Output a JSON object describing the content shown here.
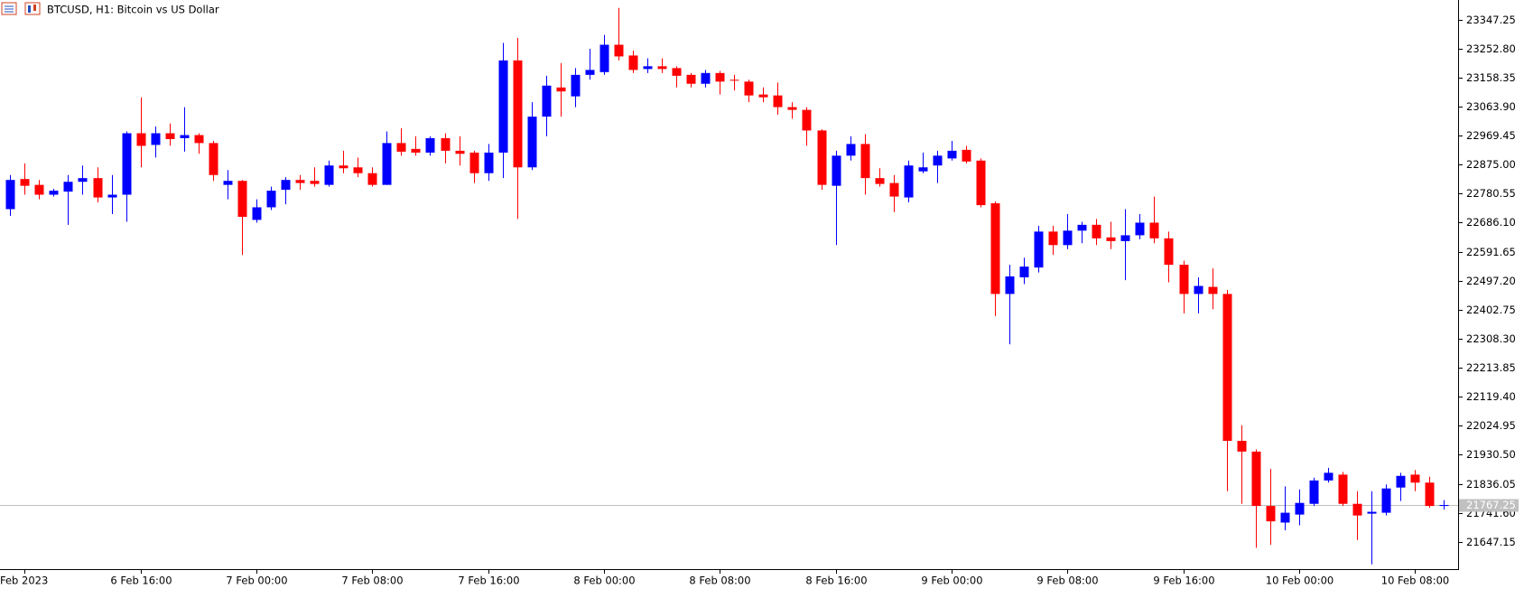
{
  "chart_data": {
    "type": "candlestick",
    "title": "BTCUSD, H1:  Bitcoin vs US Dollar",
    "bull_color": "#0000ff",
    "bear_color": "#ff0000",
    "categories": [
      null,
      "Feb 2023",
      null,
      null,
      null,
      null,
      null,
      null,
      null,
      "6 Feb 16:00",
      null,
      null,
      null,
      null,
      null,
      null,
      null,
      "7 Feb 00:00",
      null,
      null,
      null,
      null,
      null,
      null,
      null,
      "7 Feb 08:00",
      null,
      null,
      null,
      null,
      null,
      null,
      null,
      "7 Feb 16:00",
      null,
      null,
      null,
      null,
      null,
      null,
      null,
      "8 Feb 00:00",
      null,
      null,
      null,
      null,
      null,
      null,
      null,
      "8 Feb 08:00",
      null,
      null,
      null,
      null,
      null,
      null,
      null,
      "8 Feb 16:00",
      null,
      null,
      null,
      null,
      null,
      null,
      null,
      "9 Feb 00:00",
      null,
      null,
      null,
      null,
      null,
      null,
      null,
      "9 Feb 08:00",
      null,
      null,
      null,
      null,
      null,
      null,
      null,
      "9 Feb 16:00",
      null,
      null,
      null,
      null,
      null,
      null,
      null,
      "10 Feb 00:00",
      null,
      null,
      null,
      null,
      null,
      null,
      null,
      "10 Feb 08:00",
      null,
      null
    ],
    "open": [
      22730,
      22828,
      22809,
      22777,
      22787,
      22819,
      22831,
      22768,
      22777,
      22977,
      22939,
      22977,
      22961,
      22971,
      22945,
      22809,
      22822,
      22695,
      22736,
      22793,
      22825,
      22822,
      22809,
      22872,
      22866,
      22847,
      22809,
      22945,
      22926,
      22914,
      22961,
      22920,
      22914,
      22847,
      22914,
      23214,
      22866,
      23031,
      23126,
      23097,
      23167,
      23176,
      23265,
      23230,
      23186,
      23195,
      23189,
      23167,
      23138,
      23173,
      23151,
      23145,
      23103,
      23100,
      23062,
      23053,
      22986,
      22806,
      22904,
      22942,
      22831,
      22815,
      22768,
      22853,
      22872,
      22895,
      22923,
      22888,
      22749,
      22454,
      22508,
      22540,
      22657,
      22613,
      22660,
      22679,
      22638,
      22626,
      22645,
      22686,
      22635,
      22549,
      22454,
      22477,
      22454,
      21976,
      21941,
      21764,
      21710,
      21736,
      21771,
      21847,
      21866,
      21771,
      21739,
      21742,
      21824,
      21866,
      21840,
      21764
    ],
    "high": [
      22841,
      22879,
      22825,
      22796,
      22841,
      22872,
      22866,
      22841,
      22983,
      23094,
      22999,
      23009,
      23062,
      22977,
      22952,
      22857,
      22825,
      22762,
      22803,
      22834,
      22841,
      22866,
      22888,
      22920,
      22898,
      22866,
      22983,
      22993,
      22967,
      22967,
      22977,
      22967,
      22920,
      22942,
      23271,
      23287,
      23078,
      23164,
      23205,
      23189,
      23252,
      23297,
      23385,
      23246,
      23221,
      23221,
      23195,
      23173,
      23183,
      23180,
      23167,
      23151,
      23126,
      23142,
      23078,
      23062,
      22990,
      22920,
      22967,
      22974,
      22863,
      22841,
      22888,
      22914,
      22920,
      22952,
      22936,
      22895,
      22755,
      22549,
      22572,
      22676,
      22676,
      22714,
      22689,
      22698,
      22689,
      22730,
      22714,
      22771,
      22657,
      22562,
      22508,
      22537,
      22467,
      22027,
      21948,
      21885,
      21828,
      21818,
      21856,
      21888,
      21875,
      21812,
      21812,
      21834,
      21872,
      21881,
      21859,
      21783
    ],
    "low": [
      22708,
      22777,
      22762,
      22771,
      22679,
      22777,
      22752,
      22714,
      22689,
      22866,
      22898,
      22936,
      22917,
      22910,
      22822,
      22762,
      22581,
      22686,
      22727,
      22746,
      22793,
      22803,
      22803,
      22847,
      22834,
      22803,
      22809,
      22904,
      22904,
      22904,
      22879,
      22872,
      22815,
      22822,
      22831,
      22698,
      22857,
      22967,
      23031,
      23062,
      23151,
      23167,
      23214,
      23173,
      23173,
      23173,
      23126,
      23126,
      23126,
      23103,
      23116,
      23078,
      23078,
      23037,
      23024,
      22936,
      22793,
      22613,
      22888,
      22777,
      22803,
      22720,
      22752,
      22847,
      22815,
      22888,
      22879,
      22736,
      22382,
      22290,
      22486,
      22524,
      22581,
      22600,
      22619,
      22613,
      22600,
      22499,
      22632,
      22619,
      22492,
      22391,
      22391,
      22404,
      21812,
      21771,
      21628,
      21638,
      21685,
      21701,
      21764,
      21840,
      21764,
      21653,
      21574,
      21733,
      21780,
      21812,
      21758,
      21752
    ],
    "close": [
      22825,
      22806,
      22777,
      22790,
      22819,
      22831,
      22768,
      22777,
      22977,
      22936,
      22977,
      22958,
      22971,
      22945,
      22841,
      22822,
      22705,
      22736,
      22790,
      22825,
      22815,
      22812,
      22872,
      22863,
      22847,
      22809,
      22945,
      22917,
      22914,
      22961,
      22920,
      22910,
      22847,
      22914,
      23214,
      22866,
      23031,
      23132,
      23113,
      23167,
      23183,
      23265,
      23227,
      23183,
      23195,
      23186,
      23164,
      23138,
      23173,
      23145,
      23148,
      23100,
      23094,
      23062,
      23053,
      22986,
      22809,
      22904,
      22942,
      22831,
      22812,
      22771,
      22872,
      22866,
      22904,
      22920,
      22885,
      22743,
      22454,
      22511,
      22543,
      22657,
      22613,
      22660,
      22679,
      22635,
      22626,
      22645,
      22686,
      22635,
      22549,
      22454,
      22480,
      22454,
      21976,
      21941,
      21764,
      21714,
      21742,
      21774,
      21847,
      21872,
      21771,
      21733,
      21745,
      21821,
      21862,
      21840,
      21764,
      21767.25
    ],
    "current_price": 21767.25,
    "ylim": [
      21558.5,
      23410.6
    ],
    "yticks": [
      23347.25,
      {
        "value": 23252.8,
        "label": "23252.80"
      },
      23158.35,
      {
        "value": 23063.9,
        "label": "23063.90"
      },
      22969.45,
      {
        "value": 22875,
        "label": "22875.00"
      },
      22780.55,
      {
        "value": 22686.1,
        "label": "22686.10"
      },
      22591.65,
      {
        "value": 22497.2,
        "label": "22497.20"
      },
      22402.75,
      {
        "value": 22308.3,
        "label": "22308.30"
      },
      22213.85,
      {
        "value": 22119.4,
        "label": "22119.40"
      },
      22024.95,
      {
        "value": 21930.5,
        "label": "21930.50"
      },
      21836.05,
      {
        "value": 21741.6,
        "label": "21741.60"
      },
      21647.15
    ]
  }
}
